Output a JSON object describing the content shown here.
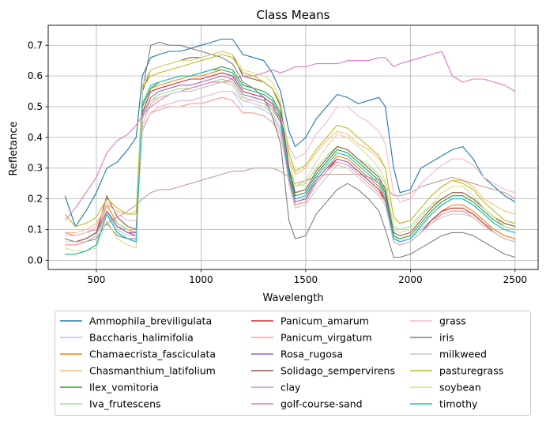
{
  "chart_data": {
    "type": "line",
    "title": "Class Means",
    "xlabel": "Wavelength",
    "ylabel": "Refletance",
    "xlim": [
      270,
      2610
    ],
    "ylim": [
      -0.03,
      0.765
    ],
    "grid": true,
    "legend_position": "below",
    "xticks": [
      {
        "value": 500,
        "label": "500"
      },
      {
        "value": 1000,
        "label": "1000"
      },
      {
        "value": 1500,
        "label": "1500"
      },
      {
        "value": 2000,
        "label": "2000"
      },
      {
        "value": 2500,
        "label": "2500"
      }
    ],
    "yticks": [
      {
        "value": 0.0,
        "label": "0.0"
      },
      {
        "value": 0.1,
        "label": "0.1"
      },
      {
        "value": 0.2,
        "label": "0.2"
      },
      {
        "value": 0.3,
        "label": "0.3"
      },
      {
        "value": 0.4,
        "label": "0.4"
      },
      {
        "value": 0.5,
        "label": "0.5"
      },
      {
        "value": 0.6,
        "label": "0.6"
      },
      {
        "value": 0.7,
        "label": "0.7"
      }
    ],
    "x": [
      350,
      400,
      450,
      500,
      550,
      600,
      650,
      690,
      720,
      760,
      800,
      850,
      900,
      950,
      1000,
      1050,
      1100,
      1150,
      1200,
      1250,
      1300,
      1340,
      1380,
      1420,
      1450,
      1500,
      1550,
      1600,
      1650,
      1700,
      1750,
      1800,
      1850,
      1880,
      1920,
      1950,
      2000,
      2050,
      2100,
      2150,
      2200,
      2250,
      2300,
      2350,
      2400,
      2450,
      2500
    ],
    "series": [
      {
        "name": "Ammophila_breviligulata",
        "color": "#1f77b4",
        "values": [
          0.21,
          0.11,
          0.16,
          0.22,
          0.3,
          0.32,
          0.36,
          0.4,
          0.6,
          0.66,
          0.67,
          0.68,
          0.68,
          0.69,
          0.7,
          0.71,
          0.72,
          0.72,
          0.67,
          0.66,
          0.65,
          0.61,
          0.55,
          0.42,
          0.37,
          0.4,
          0.46,
          0.5,
          0.54,
          0.53,
          0.51,
          0.52,
          0.53,
          0.5,
          0.3,
          0.22,
          0.23,
          0.3,
          0.32,
          0.34,
          0.36,
          0.37,
          0.33,
          0.27,
          0.24,
          0.21,
          0.19
        ]
      },
      {
        "name": "Baccharis_halimifolia",
        "color": "#aec7e8",
        "values": [
          0.07,
          0.06,
          0.07,
          0.09,
          0.15,
          0.11,
          0.1,
          0.1,
          0.42,
          0.48,
          0.5,
          0.51,
          0.52,
          0.52,
          0.53,
          0.54,
          0.55,
          0.55,
          0.5,
          0.5,
          0.49,
          0.47,
          0.42,
          0.26,
          0.2,
          0.21,
          0.26,
          0.3,
          0.32,
          0.31,
          0.29,
          0.27,
          0.25,
          0.22,
          0.08,
          0.06,
          0.07,
          0.1,
          0.13,
          0.15,
          0.16,
          0.16,
          0.15,
          0.12,
          0.1,
          0.08,
          0.07
        ]
      },
      {
        "name": "Chamaecrista_fasciculata",
        "color": "#ff7f0e",
        "values": [
          0.06,
          0.06,
          0.07,
          0.09,
          0.18,
          0.12,
          0.1,
          0.09,
          0.5,
          0.56,
          0.57,
          0.58,
          0.59,
          0.6,
          0.6,
          0.61,
          0.62,
          0.61,
          0.56,
          0.55,
          0.54,
          0.52,
          0.47,
          0.28,
          0.19,
          0.2,
          0.26,
          0.3,
          0.34,
          0.33,
          0.3,
          0.27,
          0.24,
          0.2,
          0.06,
          0.05,
          0.06,
          0.09,
          0.13,
          0.16,
          0.18,
          0.18,
          0.16,
          0.13,
          0.1,
          0.08,
          0.07
        ]
      },
      {
        "name": "Chasmanthium_latifolium",
        "color": "#ffbb78",
        "values": [
          0.09,
          0.09,
          0.1,
          0.12,
          0.18,
          0.16,
          0.15,
          0.16,
          0.44,
          0.51,
          0.53,
          0.54,
          0.55,
          0.55,
          0.56,
          0.57,
          0.58,
          0.58,
          0.53,
          0.52,
          0.51,
          0.49,
          0.45,
          0.33,
          0.28,
          0.3,
          0.35,
          0.39,
          0.42,
          0.41,
          0.38,
          0.36,
          0.33,
          0.3,
          0.14,
          0.12,
          0.13,
          0.17,
          0.21,
          0.24,
          0.26,
          0.26,
          0.24,
          0.2,
          0.18,
          0.16,
          0.15
        ]
      },
      {
        "name": "Ilex_vomitoria",
        "color": "#2ca02c",
        "values": [
          0.02,
          0.02,
          0.03,
          0.05,
          0.15,
          0.09,
          0.07,
          0.06,
          0.5,
          0.56,
          0.58,
          0.59,
          0.6,
          0.6,
          0.61,
          0.62,
          0.63,
          0.62,
          0.57,
          0.56,
          0.55,
          0.53,
          0.48,
          0.29,
          0.21,
          0.22,
          0.28,
          0.32,
          0.36,
          0.35,
          0.32,
          0.29,
          0.26,
          0.22,
          0.08,
          0.07,
          0.08,
          0.12,
          0.16,
          0.19,
          0.21,
          0.21,
          0.19,
          0.16,
          0.13,
          0.11,
          0.1
        ]
      },
      {
        "name": "Iva_frutescens",
        "color": "#98df8a",
        "values": [
          0.07,
          0.06,
          0.07,
          0.09,
          0.16,
          0.12,
          0.1,
          0.1,
          0.46,
          0.52,
          0.54,
          0.55,
          0.56,
          0.56,
          0.57,
          0.58,
          0.59,
          0.58,
          0.53,
          0.52,
          0.51,
          0.49,
          0.45,
          0.3,
          0.24,
          0.25,
          0.3,
          0.34,
          0.37,
          0.36,
          0.33,
          0.31,
          0.28,
          0.25,
          0.11,
          0.1,
          0.11,
          0.15,
          0.18,
          0.2,
          0.22,
          0.22,
          0.2,
          0.17,
          0.14,
          0.12,
          0.11
        ]
      },
      {
        "name": "Panicum_amarum",
        "color": "#d62728",
        "values": [
          0.05,
          0.05,
          0.06,
          0.08,
          0.16,
          0.11,
          0.09,
          0.08,
          0.48,
          0.55,
          0.56,
          0.57,
          0.58,
          0.59,
          0.59,
          0.6,
          0.61,
          0.6,
          0.55,
          0.54,
          0.53,
          0.51,
          0.46,
          0.27,
          0.18,
          0.19,
          0.25,
          0.29,
          0.33,
          0.32,
          0.29,
          0.26,
          0.23,
          0.19,
          0.06,
          0.05,
          0.06,
          0.09,
          0.13,
          0.16,
          0.17,
          0.17,
          0.15,
          0.12,
          0.09,
          0.07,
          0.06
        ]
      },
      {
        "name": "Panicum_virgatum",
        "color": "#ff9896",
        "values": [
          0.05,
          0.05,
          0.06,
          0.08,
          0.16,
          0.11,
          0.09,
          0.09,
          0.43,
          0.48,
          0.49,
          0.5,
          0.5,
          0.51,
          0.51,
          0.52,
          0.53,
          0.52,
          0.48,
          0.48,
          0.47,
          0.45,
          0.41,
          0.26,
          0.18,
          0.19,
          0.25,
          0.29,
          0.32,
          0.31,
          0.28,
          0.25,
          0.22,
          0.19,
          0.06,
          0.05,
          0.06,
          0.09,
          0.12,
          0.15,
          0.16,
          0.16,
          0.14,
          0.11,
          0.09,
          0.07,
          0.06
        ]
      },
      {
        "name": "Rosa_rugosa",
        "color": "#9467bd",
        "values": [
          0.06,
          0.06,
          0.07,
          0.09,
          0.16,
          0.11,
          0.09,
          0.09,
          0.47,
          0.53,
          0.55,
          0.56,
          0.57,
          0.57,
          0.58,
          0.59,
          0.6,
          0.59,
          0.54,
          0.53,
          0.52,
          0.5,
          0.45,
          0.27,
          0.19,
          0.2,
          0.26,
          0.3,
          0.33,
          0.32,
          0.29,
          0.26,
          0.23,
          0.2,
          0.07,
          0.06,
          0.07,
          0.11,
          0.15,
          0.18,
          0.2,
          0.2,
          0.18,
          0.15,
          0.12,
          0.1,
          0.09
        ]
      },
      {
        "name": "Solidago_sempervirens",
        "color": "#8c564b",
        "values": [
          0.06,
          0.06,
          0.07,
          0.09,
          0.21,
          0.14,
          0.11,
          0.1,
          0.55,
          0.62,
          0.63,
          0.64,
          0.65,
          0.66,
          0.66,
          0.67,
          0.68,
          0.67,
          0.6,
          0.59,
          0.58,
          0.56,
          0.5,
          0.3,
          0.22,
          0.23,
          0.29,
          0.33,
          0.37,
          0.36,
          0.33,
          0.3,
          0.27,
          0.23,
          0.09,
          0.08,
          0.09,
          0.13,
          0.17,
          0.2,
          0.22,
          0.22,
          0.2,
          0.17,
          0.14,
          0.12,
          0.11
        ]
      },
      {
        "name": "clay",
        "color": "#c49c94",
        "values": [
          0.09,
          0.08,
          0.09,
          0.1,
          0.12,
          0.14,
          0.16,
          0.18,
          0.2,
          0.22,
          0.23,
          0.23,
          0.24,
          0.25,
          0.26,
          0.27,
          0.28,
          0.29,
          0.29,
          0.3,
          0.3,
          0.3,
          0.29,
          0.27,
          0.25,
          0.26,
          0.27,
          0.28,
          0.28,
          0.28,
          0.28,
          0.27,
          0.26,
          0.24,
          0.21,
          0.21,
          0.22,
          0.24,
          0.25,
          0.26,
          0.27,
          0.26,
          0.25,
          0.24,
          0.23,
          0.22,
          0.2
        ]
      },
      {
        "name": "golf-course-sand",
        "color": "#e377c2",
        "values": [
          0.13,
          0.17,
          0.22,
          0.27,
          0.35,
          0.39,
          0.41,
          0.44,
          0.47,
          0.5,
          0.52,
          0.54,
          0.55,
          0.56,
          0.57,
          0.58,
          0.58,
          0.59,
          0.6,
          0.6,
          0.61,
          0.62,
          0.61,
          0.62,
          0.63,
          0.63,
          0.64,
          0.64,
          0.64,
          0.65,
          0.65,
          0.65,
          0.66,
          0.66,
          0.63,
          0.64,
          0.65,
          0.66,
          0.67,
          0.68,
          0.6,
          0.58,
          0.59,
          0.59,
          0.58,
          0.57,
          0.55
        ]
      },
      {
        "name": "grass",
        "color": "#f7b6d2",
        "values": [
          0.08,
          0.08,
          0.09,
          0.11,
          0.19,
          0.15,
          0.13,
          0.13,
          0.43,
          0.48,
          0.5,
          0.51,
          0.52,
          0.52,
          0.53,
          0.54,
          0.55,
          0.55,
          0.52,
          0.52,
          0.51,
          0.5,
          0.47,
          0.37,
          0.33,
          0.35,
          0.41,
          0.45,
          0.5,
          0.5,
          0.47,
          0.45,
          0.42,
          0.38,
          0.22,
          0.19,
          0.2,
          0.25,
          0.28,
          0.31,
          0.33,
          0.33,
          0.31,
          0.27,
          0.25,
          0.23,
          0.22
        ]
      },
      {
        "name": "iris",
        "color": "#7f7f7f",
        "values": [
          0.07,
          0.06,
          0.06,
          0.07,
          0.12,
          0.08,
          0.07,
          0.07,
          0.55,
          0.7,
          0.71,
          0.7,
          0.7,
          0.69,
          0.68,
          0.67,
          0.66,
          0.64,
          0.58,
          0.56,
          0.53,
          0.47,
          0.38,
          0.13,
          0.07,
          0.08,
          0.15,
          0.19,
          0.23,
          0.25,
          0.23,
          0.2,
          0.16,
          0.1,
          0.01,
          0.01,
          0.02,
          0.04,
          0.06,
          0.08,
          0.09,
          0.09,
          0.08,
          0.06,
          0.04,
          0.02,
          0.01
        ]
      },
      {
        "name": "milkweed",
        "color": "#c7c7c7",
        "values": [
          0.06,
          0.06,
          0.06,
          0.08,
          0.15,
          0.1,
          0.08,
          0.08,
          0.46,
          0.52,
          0.53,
          0.54,
          0.55,
          0.55,
          0.56,
          0.57,
          0.58,
          0.57,
          0.52,
          0.51,
          0.5,
          0.48,
          0.43,
          0.25,
          0.17,
          0.18,
          0.23,
          0.27,
          0.31,
          0.3,
          0.27,
          0.24,
          0.21,
          0.18,
          0.06,
          0.05,
          0.06,
          0.09,
          0.12,
          0.14,
          0.15,
          0.15,
          0.14,
          0.11,
          0.09,
          0.07,
          0.06
        ]
      },
      {
        "name": "pasturegrass",
        "color": "#bcbd22",
        "values": [
          0.15,
          0.11,
          0.12,
          0.14,
          0.2,
          0.17,
          0.15,
          0.15,
          0.56,
          0.6,
          0.61,
          0.62,
          0.63,
          0.64,
          0.65,
          0.66,
          0.67,
          0.66,
          0.61,
          0.6,
          0.58,
          0.56,
          0.51,
          0.35,
          0.29,
          0.31,
          0.36,
          0.4,
          0.44,
          0.43,
          0.4,
          0.37,
          0.34,
          0.3,
          0.14,
          0.12,
          0.13,
          0.17,
          0.21,
          0.24,
          0.26,
          0.25,
          0.23,
          0.19,
          0.16,
          0.13,
          0.12
        ]
      },
      {
        "name": "soybean",
        "color": "#dbdb8d",
        "values": [
          0.04,
          0.03,
          0.03,
          0.04,
          0.13,
          0.07,
          0.05,
          0.04,
          0.57,
          0.62,
          0.63,
          0.64,
          0.65,
          0.65,
          0.66,
          0.67,
          0.68,
          0.67,
          0.62,
          0.61,
          0.6,
          0.58,
          0.52,
          0.33,
          0.24,
          0.26,
          0.32,
          0.37,
          0.41,
          0.4,
          0.37,
          0.34,
          0.3,
          0.26,
          0.1,
          0.09,
          0.1,
          0.14,
          0.18,
          0.22,
          0.24,
          0.24,
          0.21,
          0.17,
          0.14,
          0.11,
          0.1
        ]
      },
      {
        "name": "timothy",
        "color": "#17becf",
        "values": [
          0.02,
          0.02,
          0.03,
          0.05,
          0.15,
          0.09,
          0.07,
          0.06,
          0.51,
          0.57,
          0.58,
          0.59,
          0.6,
          0.6,
          0.61,
          0.62,
          0.62,
          0.61,
          0.56,
          0.55,
          0.54,
          0.52,
          0.47,
          0.28,
          0.2,
          0.21,
          0.27,
          0.31,
          0.35,
          0.34,
          0.31,
          0.28,
          0.25,
          0.21,
          0.07,
          0.06,
          0.07,
          0.11,
          0.15,
          0.18,
          0.2,
          0.2,
          0.18,
          0.15,
          0.12,
          0.1,
          0.09
        ]
      }
    ]
  }
}
